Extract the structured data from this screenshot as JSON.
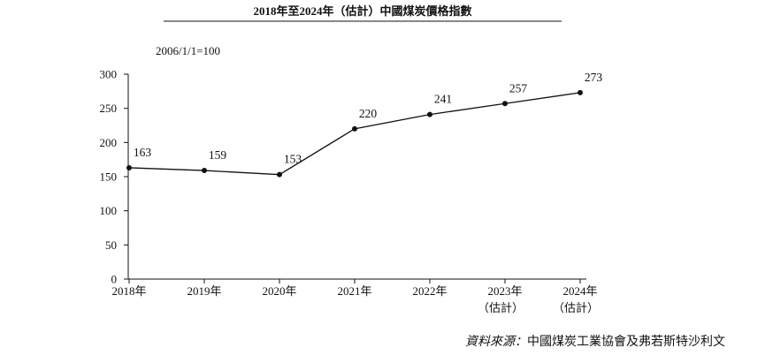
{
  "chart_data": {
    "type": "line",
    "title": "2018年至2024年（估計）中國煤炭價格指數",
    "unit_note": "2006/1/1=100",
    "categories": [
      "2018年",
      "2019年",
      "2020年",
      "2021年",
      "2022年",
      "2023年",
      "2024年"
    ],
    "category_sublabels": [
      "",
      "",
      "",
      "",
      "",
      "（估計）",
      "（估計）"
    ],
    "values": [
      163,
      159,
      153,
      220,
      241,
      257,
      273
    ],
    "value_labels": [
      "163",
      "159",
      "153",
      "220",
      "241",
      "257",
      "273"
    ],
    "yticks": [
      "0",
      "50",
      "100",
      "150",
      "200",
      "250",
      "300"
    ],
    "ytick_values": [
      0,
      50,
      100,
      150,
      200,
      250,
      300
    ],
    "ylim": [
      0,
      300
    ],
    "grid": false,
    "legend": "none",
    "line_color": "#111111"
  },
  "source": {
    "label": "資料來源：",
    "text": "中國煤炭工業協會及弗若斯特沙利文"
  }
}
